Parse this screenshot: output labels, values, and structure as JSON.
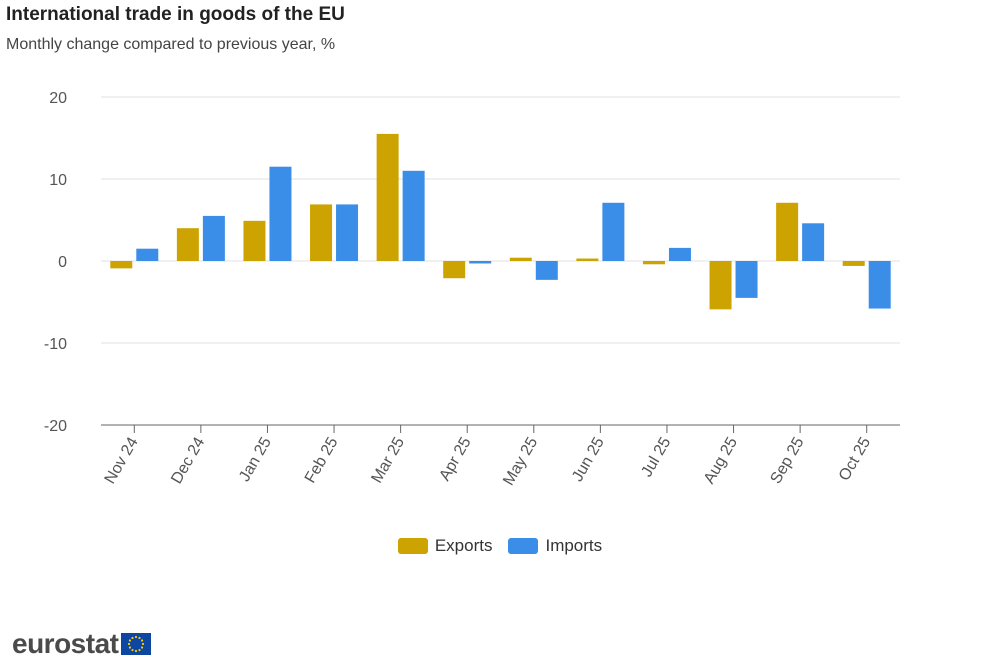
{
  "chart_data": {
    "type": "bar",
    "title": "International trade in goods of the EU",
    "subtitle": "Monthly change compared to previous year, %",
    "categories": [
      "Nov 24",
      "Dec 24",
      "Jan 25",
      "Feb 25",
      "Mar 25",
      "Apr 25",
      "May 25",
      "Jun 25",
      "Jul 25",
      "Aug 25",
      "Sep 25",
      "Oct 25"
    ],
    "series": [
      {
        "name": "Exports",
        "color": "#cca300",
        "values": [
          -0.9,
          4.0,
          4.9,
          6.9,
          15.5,
          -2.1,
          0.4,
          0.3,
          -0.4,
          -5.9,
          7.1,
          -0.6
        ]
      },
      {
        "name": "Imports",
        "color": "#3b8ee8",
        "values": [
          1.5,
          5.5,
          11.5,
          6.9,
          11.0,
          -0.3,
          -2.3,
          7.1,
          1.6,
          -4.5,
          4.6,
          -5.8
        ]
      }
    ],
    "ylim": [
      -20,
      20
    ],
    "yticks": [
      20,
      10,
      0,
      -10,
      -20
    ],
    "grid": true,
    "legend_position": "bottom"
  },
  "branding": {
    "logo_text": "eurostat"
  }
}
